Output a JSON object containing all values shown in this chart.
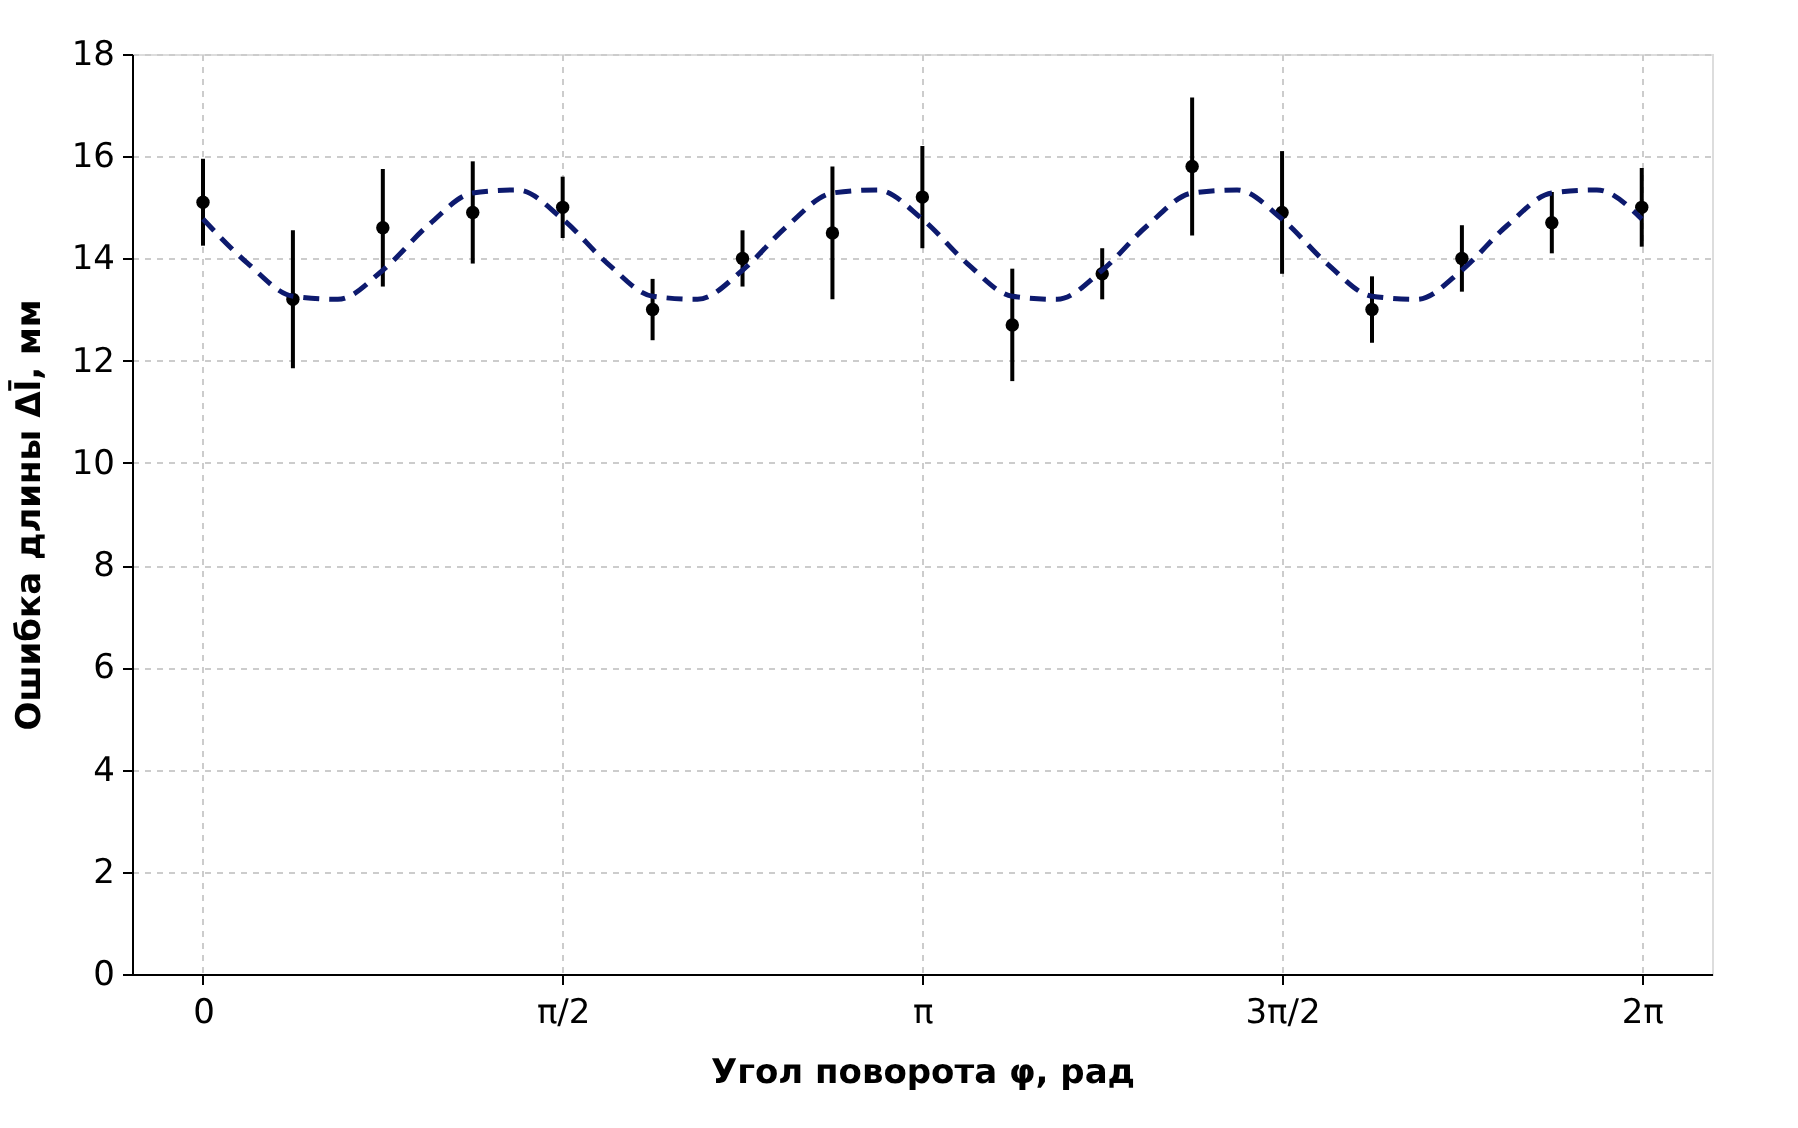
{
  "chart_data": {
    "type": "scatter",
    "xlabel": "Угол поворота φ, рад",
    "ylabel": "Ошибка длины Δl̄, мм",
    "xlim": [
      -0.31,
      6.59
    ],
    "xticks": [
      {
        "value": 0,
        "label": "0"
      },
      {
        "value": 1.5708,
        "label": "π/2"
      },
      {
        "value": 3.1416,
        "label": "π"
      },
      {
        "value": 4.7124,
        "label": "3π/2"
      },
      {
        "value": 6.2832,
        "label": "2π"
      }
    ],
    "ylim": [
      0,
      18
    ],
    "yticks": [
      0,
      2,
      4,
      6,
      8,
      10,
      12,
      14,
      16,
      18
    ],
    "grid": true,
    "series": [
      {
        "color": "#000000",
        "marker": "circle",
        "x": [
          0,
          0.3927,
          0.7854,
          1.1781,
          1.5708,
          1.9635,
          2.3562,
          2.7489,
          3.1416,
          3.5343,
          3.927,
          4.3197,
          4.7124,
          5.1051,
          5.4978,
          5.8905,
          6.2832
        ],
        "values": [
          15.1,
          13.2,
          14.6,
          14.9,
          15.0,
          13.0,
          14.0,
          14.5,
          15.2,
          12.7,
          13.7,
          15.8,
          14.9,
          13.0,
          14.0,
          14.7,
          15.0
        ],
        "errors": [
          0.85,
          1.35,
          1.15,
          1.0,
          0.6,
          0.6,
          0.55,
          1.3,
          1.0,
          1.1,
          0.5,
          1.35,
          1.2,
          0.65,
          0.65,
          0.6,
          0.77
        ]
      },
      {
        "type": "line",
        "color": "#0d1a6e",
        "line_style": "dashed",
        "marker": "none",
        "x": [
          0,
          0.1963,
          0.3927,
          0.589,
          0.7854,
          0.9817,
          1.1781,
          1.3744,
          1.5708,
          1.7671,
          1.9635,
          2.1598,
          2.3562,
          2.5525,
          2.7489,
          2.9452,
          3.1416,
          3.3379,
          3.5343,
          3.7306,
          3.927,
          4.1233,
          4.3197,
          4.516,
          4.7124,
          4.9087,
          5.1051,
          5.3014,
          5.4978,
          5.6941,
          5.8905,
          6.0868,
          6.2832
        ],
        "values": [
          14.77,
          13.9,
          13.26,
          13.2,
          13.77,
          14.64,
          15.28,
          15.34,
          14.77,
          13.9,
          13.26,
          13.2,
          13.77,
          14.64,
          15.28,
          15.34,
          14.77,
          13.9,
          13.26,
          13.2,
          13.77,
          14.64,
          15.28,
          15.34,
          14.77,
          13.9,
          13.26,
          13.2,
          13.77,
          14.64,
          15.28,
          15.34,
          14.77
        ]
      }
    ]
  }
}
